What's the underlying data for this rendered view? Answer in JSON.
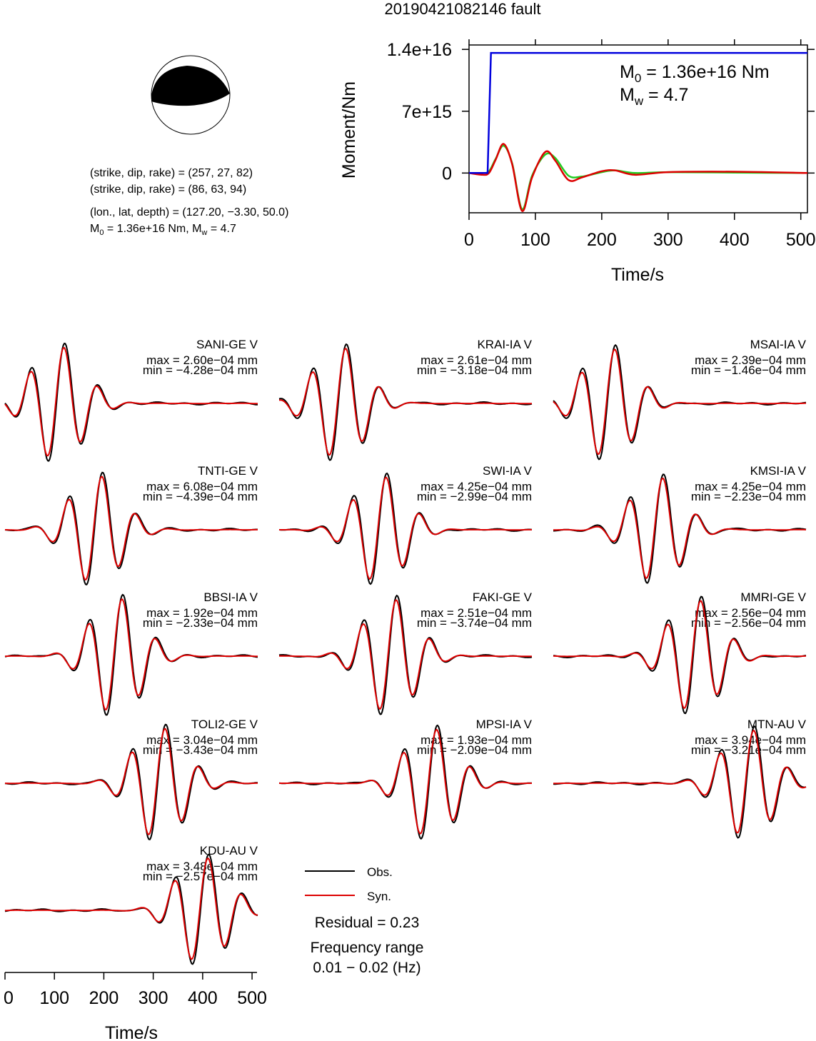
{
  "title": "20190421082146 fault",
  "mechanism": {
    "line1": "(strike, dip, rake) = (257, 27, 82)",
    "line2": "(strike, dip, rake) = (86, 63, 94)",
    "location": "(lon., lat, depth) = (127.20, −3.30, 50.0)",
    "moment_prefix": "M",
    "moment_sub": "0",
    "moment_value": " = 1.36e+16 Nm, M",
    "mw_sub": "w",
    "mw_value": " = 4.7"
  },
  "moment_panel": {
    "m0_prefix": "M",
    "m0_sub": "0",
    "m0_value": " = 1.36e+16 Nm",
    "mw_prefix": "M",
    "mw_sub": "w",
    "mw_value": " = 4.7",
    "ylabel": "Moment/Nm",
    "xlabel": "Time/s",
    "yticks": [
      "1.4e+16",
      "7e+15",
      "0"
    ],
    "xticks": [
      "0",
      "100",
      "200",
      "300",
      "400",
      "500"
    ]
  },
  "legend": {
    "obs": "Obs.",
    "syn": "Syn.",
    "residual": "Residual = 0.23",
    "freq_label": "Frequency range",
    "freq_value": "0.01 − 0.02 (Hz)"
  },
  "time_axis": {
    "xlabel": "Time/s",
    "xticks": [
      "0",
      "100",
      "200",
      "300",
      "400",
      "500"
    ]
  },
  "colors": {
    "obs": "#000000",
    "syn": "#dd0000",
    "moment": "#0000dd",
    "stf_green": "#22cc22"
  },
  "chart_data": [
    {
      "type": "line",
      "name": "moment-function",
      "xlim": [
        0,
        510
      ],
      "ylim": [
        -4500000000000000.0,
        1.45e+16
      ],
      "series": [
        {
          "name": "moment",
          "x": [
            0,
            28,
            33,
            510
          ],
          "y": [
            0,
            0,
            1.36e+16,
            1.36e+16
          ]
        },
        {
          "name": "stf-red",
          "x": [
            0,
            20,
            30,
            40,
            52,
            65,
            80,
            95,
            115,
            130,
            150,
            170,
            200,
            220,
            250,
            300,
            400,
            510
          ],
          "y": [
            0,
            -200000000000000.0,
            0,
            1500000000000000.0,
            3300000000000000.0,
            1000000000000000.0,
            -4300000000000000.0,
            -500000000000000.0,
            2400000000000000.0,
            1400000000000000.0,
            -800000000000000.0,
            -500000000000000.0,
            200000000000000.0,
            300000000000000.0,
            -200000000000000.0,
            100000000000000.0,
            150000000000000.0,
            0
          ]
        },
        {
          "name": "stf-green",
          "x": [
            0,
            20,
            30,
            40,
            52,
            65,
            80,
            95,
            115,
            130,
            150,
            170,
            200,
            220,
            250,
            300,
            400,
            510
          ],
          "y": [
            0,
            0,
            200000000000000.0,
            1600000000000000.0,
            3100000000000000.0,
            1100000000000000.0,
            -4100000000000000.0,
            -300000000000000.0,
            2100000000000000.0,
            1700000000000000.0,
            -300000000000000.0,
            -400000000000000.0,
            100000000000000.0,
            300000000000000.0,
            0,
            100000000000000.0,
            50000000000000.0,
            0
          ]
        }
      ]
    },
    {
      "type": "line",
      "stations": [
        {
          "name": "SANI-GE V",
          "max": "max = 2.60e−04 mm",
          "min": "min = −4.28e−04 mm"
        },
        {
          "name": "KRAI-IA V",
          "max": "max = 2.61e−04 mm",
          "min": "min = −3.18e−04 mm"
        },
        {
          "name": "MSAI-IA V",
          "max": "max = 2.39e−04 mm",
          "min": "min = −1.46e−04 mm"
        },
        {
          "name": "TNTI-GE V",
          "max": "max = 6.08e−04 mm",
          "min": "min = −4.39e−04 mm"
        },
        {
          "name": "SWI-IA V",
          "max": "max = 4.25e−04 mm",
          "min": "min = −2.99e−04 mm"
        },
        {
          "name": "KMSI-IA V",
          "max": "max = 4.25e−04 mm",
          "min": "min = −2.23e−04 mm"
        },
        {
          "name": "BBSI-IA V",
          "max": "max = 1.92e−04 mm",
          "min": "min = −2.33e−04 mm"
        },
        {
          "name": "FAKI-GE V",
          "max": "max = 2.51e−04 mm",
          "min": "min = −3.74e−04 mm"
        },
        {
          "name": "MMRI-GE V",
          "max": "max = 2.56e−04 mm",
          "min": "min = −2.56e−04 mm"
        },
        {
          "name": "TOLI2-GE V",
          "max": "max = 3.04e−04 mm",
          "min": "min = −3.43e−04 mm"
        },
        {
          "name": "MPSI-IA V",
          "max": "max = 1.93e−04 mm",
          "min": "min = −2.09e−04 mm"
        },
        {
          "name": "MTN-AU V",
          "max": "max = 3.94e−04 mm",
          "min": "min = −3.21e−04 mm"
        },
        {
          "name": "KDU-AU V",
          "max": "max = 3.48e−04 mm",
          "min": "min = −2.57e−04 mm"
        }
      ]
    }
  ]
}
